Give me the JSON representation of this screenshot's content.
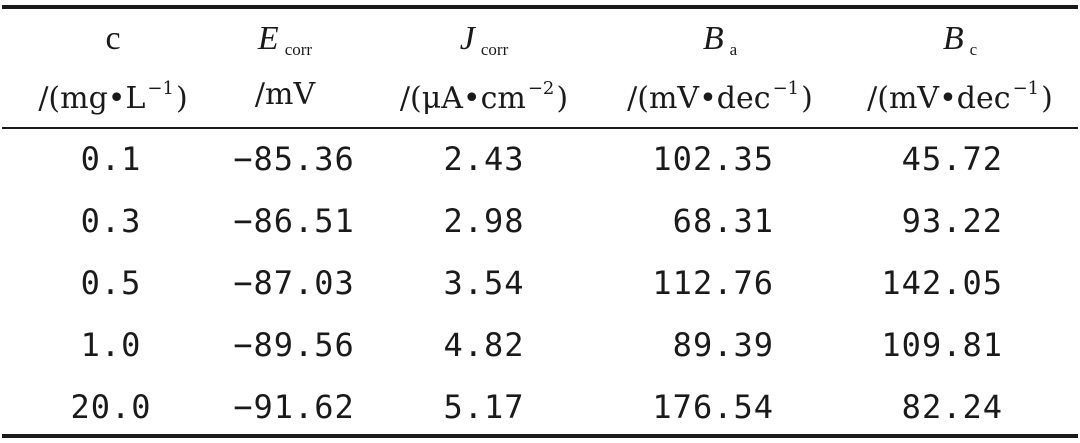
{
  "table": {
    "headers": [
      {
        "symbol": "c",
        "sub": "",
        "italic": false,
        "unit_pre": "/(mg•L",
        "unit_sup": "−1",
        "unit_post": ")"
      },
      {
        "symbol": "E",
        "sub": "corr",
        "italic": true,
        "unit_pre": "/mV",
        "unit_sup": "",
        "unit_post": ""
      },
      {
        "symbol": "J",
        "sub": "corr",
        "italic": true,
        "unit_pre": "/(μA•cm",
        "unit_sup": "−2",
        "unit_post": ")"
      },
      {
        "symbol": "B",
        "sub": "a",
        "italic": true,
        "unit_pre": "/(mV•dec",
        "unit_sup": "−1",
        "unit_post": ")"
      },
      {
        "symbol": "B",
        "sub": "c",
        "italic": true,
        "unit_pre": "/(mV•dec",
        "unit_sup": "−1",
        "unit_post": ")"
      }
    ],
    "rows": [
      [
        "0.1",
        "−85.36",
        "2.43",
        "102.35",
        "45.72"
      ],
      [
        "0.3",
        "−86.51",
        "2.98",
        "68.31",
        "93.22"
      ],
      [
        "0.5",
        "−87.03",
        "3.54",
        "112.76",
        "142.05"
      ],
      [
        "1.0",
        "−89.56",
        "4.82",
        "89.39",
        "109.81"
      ],
      [
        "20.0",
        "−91.62",
        "5.17",
        "176.54",
        "82.24"
      ]
    ]
  }
}
